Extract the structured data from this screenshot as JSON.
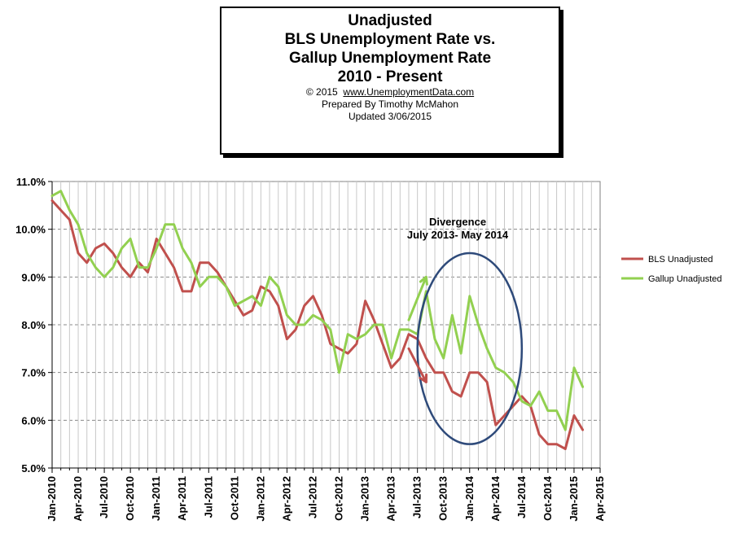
{
  "chart_data": {
    "type": "line",
    "title_lines": [
      "Unadjusted",
      "BLS Unemployment Rate vs.",
      "Gallup Unemployment Rate",
      "2010 - Present"
    ],
    "subtitle": {
      "copyright": "© 2015",
      "site": "www.UnemploymentData.com",
      "prepared_by": "Prepared  By Timothy McMahon",
      "updated": "Updated  3/06/2015"
    },
    "xlabel": "",
    "ylabel": "",
    "ylim": [
      5.0,
      11.0
    ],
    "y_ticks": [
      5.0,
      6.0,
      7.0,
      8.0,
      9.0,
      10.0,
      11.0
    ],
    "y_tick_labels": [
      "5.0%",
      "6.0%",
      "7.0%",
      "8.0%",
      "9.0%",
      "10.0%",
      "11.0%"
    ],
    "x_domain": [
      "2010-01",
      "2015-04"
    ],
    "x_tick_labels": [
      "Jan-2010",
      "Apr-2010",
      "Jul-2010",
      "Oct-2010",
      "Jan-2011",
      "Apr-2011",
      "Jul-2011",
      "Oct-2011",
      "Jan-2012",
      "Apr-2012",
      "Jul-2012",
      "Oct-2012",
      "Jan-2013",
      "Apr-2013",
      "Jul-2013",
      "Oct-2013",
      "Jan-2014",
      "Apr-2014",
      "Jul-2014",
      "Oct-2014",
      "Jan-2015",
      "Apr-2015"
    ],
    "grid": true,
    "legend_position": "right",
    "series": [
      {
        "name": "BLS Unadjusted",
        "color": "#c0504d",
        "start": "2010-01",
        "values": [
          10.6,
          10.4,
          10.2,
          9.5,
          9.3,
          9.6,
          9.7,
          9.5,
          9.2,
          9.0,
          9.3,
          9.1,
          9.8,
          9.5,
          9.2,
          8.7,
          8.7,
          9.3,
          9.3,
          9.1,
          8.8,
          8.5,
          8.2,
          8.3,
          8.8,
          8.7,
          8.4,
          7.7,
          7.9,
          8.4,
          8.6,
          8.2,
          7.6,
          7.5,
          7.4,
          7.6,
          8.5,
          8.1,
          7.6,
          7.1,
          7.3,
          7.8,
          7.7,
          7.3,
          7.0,
          7.0,
          6.6,
          6.5,
          7.0,
          7.0,
          6.8,
          5.9,
          6.1,
          6.3,
          6.5,
          6.3,
          5.7,
          5.5,
          5.5,
          5.4,
          6.1,
          5.8
        ]
      },
      {
        "name": "Gallup Unadjusted",
        "color": "#92d050",
        "start": "2010-01",
        "values": [
          10.7,
          10.8,
          10.4,
          10.1,
          9.5,
          9.2,
          9.0,
          9.2,
          9.6,
          9.8,
          9.2,
          9.2,
          9.6,
          10.1,
          10.1,
          9.6,
          9.3,
          8.8,
          9.0,
          9.0,
          8.8,
          8.4,
          8.5,
          8.6,
          8.4,
          9.0,
          8.8,
          8.2,
          8.0,
          8.0,
          8.2,
          8.1,
          7.9,
          7.0,
          7.8,
          7.7,
          7.8,
          8.0,
          8.0,
          7.3,
          7.9,
          7.9,
          7.8,
          8.7,
          7.7,
          7.3,
          8.2,
          7.4,
          8.6,
          8.0,
          7.5,
          7.1,
          7.0,
          6.8,
          6.4,
          6.3,
          6.6,
          6.2,
          6.2,
          5.8,
          7.1,
          6.7
        ]
      }
    ],
    "annotations": {
      "divergence_label": "Divergence",
      "divergence_dates": "July 2013- May 2014",
      "ellipse_center": [
        "2014-01",
        7.5
      ],
      "ellipse_radii_months": 6,
      "ellipse_radii_percent": 2.0,
      "arrows": [
        {
          "color": "#92d050",
          "from": [
            "2013-06",
            8.1
          ],
          "to": [
            "2013-08",
            9.0
          ]
        },
        {
          "color": "#c0504d",
          "from": [
            "2013-06",
            7.5
          ],
          "to": [
            "2013-08",
            6.8
          ]
        }
      ]
    }
  }
}
